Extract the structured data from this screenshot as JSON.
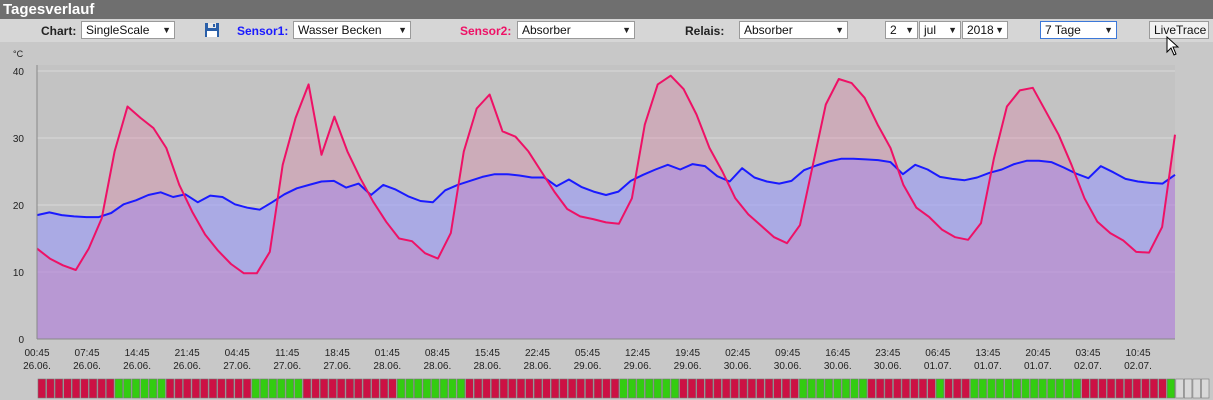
{
  "title": "Tagesverlauf",
  "toolbar": {
    "chart_label": "Chart:",
    "chart_value": "SingleScale",
    "sensor1_label": "Sensor1:",
    "sensor1_value": "Wasser Becken",
    "sensor2_label": "Sensor2:",
    "sensor2_value": "Absorber",
    "relais_label": "Relais:",
    "relais_value": "Absorber",
    "day": "2",
    "month": "jul",
    "year": "2018",
    "range": "7 Tage",
    "livetrace_label": "LiveTrace"
  },
  "colors": {
    "sensor1": "#1a1aff",
    "sensor2": "#ee1166",
    "relais_on": "#33cc11",
    "relais_off": "#cc1144"
  },
  "chart_data": {
    "type": "area",
    "ylabel": "°C",
    "ylim": [
      0,
      40
    ],
    "yticks": [
      0,
      10,
      20,
      30,
      40
    ],
    "grid": true,
    "xtick_labels": [
      [
        "00:45",
        "26.06."
      ],
      [
        "07:45",
        "26.06."
      ],
      [
        "14:45",
        "26.06."
      ],
      [
        "21:45",
        "26.06."
      ],
      [
        "04:45",
        "27.06."
      ],
      [
        "11:45",
        "27.06."
      ],
      [
        "18:45",
        "27.06."
      ],
      [
        "01:45",
        "28.06."
      ],
      [
        "08:45",
        "28.06."
      ],
      [
        "15:45",
        "28.06."
      ],
      [
        "22:45",
        "28.06."
      ],
      [
        "05:45",
        "29.06."
      ],
      [
        "12:45",
        "29.06."
      ],
      [
        "19:45",
        "29.06."
      ],
      [
        "02:45",
        "30.06."
      ],
      [
        "09:45",
        "30.06."
      ],
      [
        "16:45",
        "30.06."
      ],
      [
        "23:45",
        "30.06."
      ],
      [
        "06:45",
        "01.07."
      ],
      [
        "13:45",
        "01.07."
      ],
      [
        "20:45",
        "01.07."
      ],
      [
        "03:45",
        "02.07."
      ],
      [
        "10:45",
        "02.07."
      ]
    ],
    "series": [
      {
        "name": "Sensor1",
        "values": [
          18.5,
          18.9,
          18.5,
          18.3,
          18.2,
          18.2,
          18.8,
          20.1,
          20.7,
          21.5,
          21.9,
          21.2,
          21.6,
          20.4,
          21.4,
          21.2,
          20.1,
          19.6,
          19.3,
          20.4,
          21.6,
          22.5,
          23.0,
          23.5,
          23.6,
          22.6,
          23.2,
          21.5,
          23.0,
          22.3,
          21.3,
          20.6,
          20.4,
          22.2,
          23.0,
          23.6,
          24.2,
          24.6,
          24.6,
          24.4,
          24.1,
          24.1,
          22.8,
          23.8,
          22.7,
          22.0,
          21.5,
          22.0,
          23.6,
          24.5,
          25.3,
          26.0,
          25.3,
          26.1,
          25.8,
          24.3,
          23.5,
          25.5,
          24.1,
          23.5,
          23.2,
          23.6,
          25.2,
          25.9,
          26.5,
          26.9,
          26.9,
          26.8,
          26.7,
          26.4,
          24.6,
          26.0,
          25.3,
          24.2,
          23.9,
          23.7,
          24.1,
          24.8,
          25.3,
          26.1,
          26.6,
          26.6,
          26.4,
          25.6,
          24.7,
          24.0,
          25.8,
          24.9,
          23.9,
          23.5,
          23.3,
          23.2,
          24.5
        ]
      },
      {
        "name": "Sensor2",
        "values": [
          13.5,
          12.0,
          11.0,
          10.3,
          13.5,
          18.0,
          28.0,
          34.7,
          33.0,
          31.5,
          28.5,
          23.0,
          19.0,
          15.6,
          13.2,
          11.2,
          9.8,
          9.8,
          13.0,
          26.0,
          33.0,
          38.0,
          27.5,
          33.2,
          28.0,
          24.0,
          20.5,
          17.5,
          15.0,
          14.6,
          12.8,
          12.0,
          15.8,
          28.0,
          34.4,
          36.5,
          31.0,
          30.2,
          28.0,
          25.0,
          22.0,
          19.4,
          18.3,
          17.9,
          17.4,
          17.2,
          21.0,
          32.0,
          38.0,
          39.3,
          37.3,
          33.5,
          28.5,
          25.0,
          21.0,
          18.6,
          16.9,
          15.2,
          14.3,
          17.0,
          26.0,
          35.0,
          38.8,
          38.2,
          36.0,
          32.0,
          28.5,
          23.0,
          19.6,
          18.2,
          16.3,
          15.2,
          14.8,
          17.3,
          27.0,
          34.7,
          37.1,
          37.5,
          34.0,
          30.5,
          26.0,
          21.0,
          17.5,
          15.8,
          14.7,
          13.0,
          12.9,
          16.7,
          30.5
        ]
      }
    ]
  },
  "relais_bar": {
    "states": [
      0,
      0,
      0,
      0,
      0,
      0,
      0,
      0,
      0,
      1,
      1,
      1,
      1,
      1,
      1,
      0,
      0,
      0,
      0,
      0,
      0,
      0,
      0,
      0,
      0,
      1,
      1,
      1,
      1,
      1,
      1,
      0,
      0,
      0,
      0,
      0,
      0,
      0,
      0,
      0,
      0,
      0,
      1,
      1,
      1,
      1,
      1,
      1,
      1,
      1,
      0,
      0,
      0,
      0,
      0,
      0,
      0,
      0,
      0,
      0,
      0,
      0,
      0,
      0,
      0,
      0,
      0,
      0,
      1,
      1,
      1,
      1,
      1,
      1,
      1,
      0,
      0,
      0,
      0,
      0,
      0,
      0,
      0,
      0,
      0,
      0,
      0,
      0,
      0,
      1,
      1,
      1,
      1,
      1,
      1,
      1,
      1,
      0,
      0,
      0,
      0,
      0,
      0,
      0,
      0,
      1,
      0,
      0,
      0,
      1,
      1,
      1,
      1,
      1,
      1,
      1,
      1,
      1,
      1,
      1,
      1,
      1,
      0,
      0,
      0,
      0,
      0,
      0,
      0,
      0,
      0,
      0,
      1,
      2,
      2,
      2,
      2
    ]
  }
}
